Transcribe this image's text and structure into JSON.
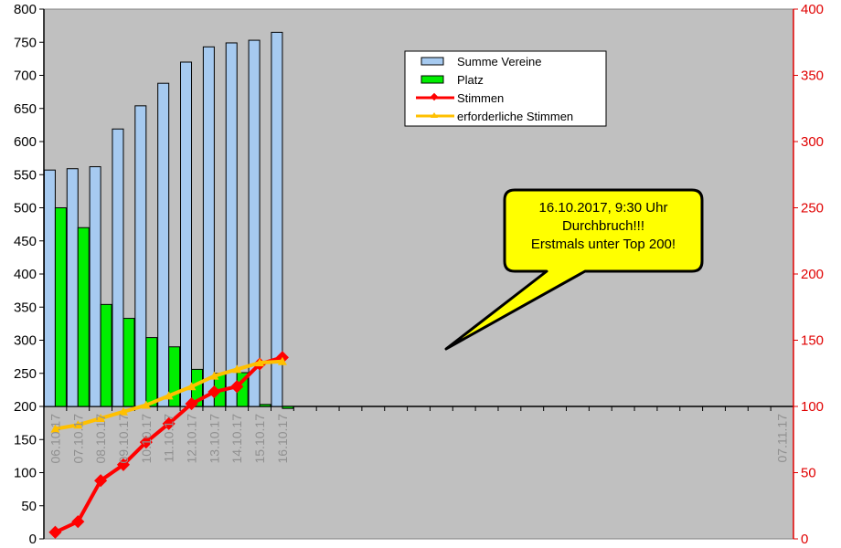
{
  "chart_data": {
    "type": "bar",
    "title": "",
    "x_tick_labels": [
      "06.10.17",
      "07.10.17",
      "08.10.17",
      "09.10.17",
      "10.10.17",
      "11.10.17",
      "12.10.17",
      "13.10.17",
      "14.10.17",
      "15.10.17",
      "16.10.17",
      "07.11.17"
    ],
    "categories": [
      "06.10.17",
      "07.10.17",
      "08.10.17",
      "09.10.17",
      "10.10.17",
      "11.10.17",
      "12.10.17",
      "13.10.17",
      "14.10.17",
      "15.10.17",
      "16.10.17"
    ],
    "x_range": [
      "06.10.17",
      "07.11.17"
    ],
    "left_axis": {
      "min": 0,
      "max": 800,
      "step": 50,
      "color": "#000000"
    },
    "right_axis": {
      "min": 0,
      "max": 400,
      "step": 50,
      "color": "#e00000"
    },
    "series": [
      {
        "name": "Summe Vereine",
        "type": "bar",
        "axis": "left",
        "color": "#a6caf0",
        "values": [
          557,
          559,
          562,
          619,
          654,
          688,
          720,
          743,
          749,
          753,
          765
        ]
      },
      {
        "name": "Platz",
        "type": "bar",
        "axis": "left",
        "color": "#00ee00",
        "values": [
          500,
          470,
          354,
          333,
          304,
          290,
          256,
          250,
          251,
          203,
          197
        ]
      },
      {
        "name": "Stimmen",
        "type": "line",
        "axis": "right",
        "color": "#ff0000",
        "values": [
          5,
          13,
          44,
          56,
          73,
          87,
          102,
          111,
          115,
          132,
          137
        ]
      },
      {
        "name": "erforderliche Stimmen",
        "type": "line",
        "axis": "right",
        "color": "#ffc000",
        "values": [
          83,
          86,
          91,
          96,
          101,
          108,
          115,
          123,
          128,
          133,
          134
        ]
      }
    ],
    "legend_position": "top-right",
    "grid": false,
    "plot_background": "#c0c0c0",
    "baseline_value": 200,
    "annotation": {
      "lines": [
        "16.10.2017,  9:30 Uhr",
        "Durchbruch!!!",
        "Erstmals unter Top 200!"
      ],
      "target_category": "16.10.17",
      "target_series": "Stimmen",
      "fill": "#ffff00"
    }
  }
}
